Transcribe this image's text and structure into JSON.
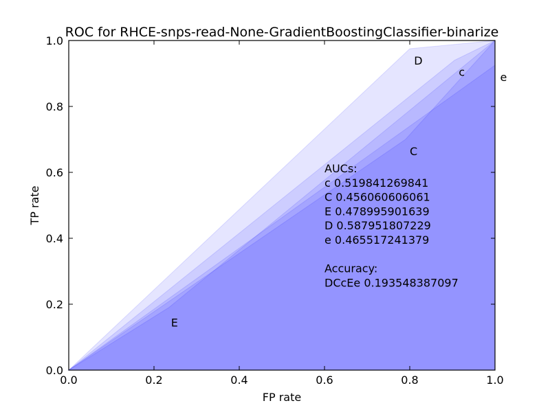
{
  "chart_data": {
    "type": "area",
    "title": "ROC for RHCE-snps-read-None-GradientBoostingClassifier-binarize",
    "xlabel": "FP rate",
    "ylabel": "TP rate",
    "xlim": [
      0.0,
      1.0
    ],
    "ylim": [
      0.0,
      1.0
    ],
    "xticks": [
      "0.0",
      "0.2",
      "0.4",
      "0.6",
      "0.8",
      "1.0"
    ],
    "yticks": [
      "0.0",
      "0.2",
      "0.4",
      "0.6",
      "0.8",
      "1.0"
    ],
    "fill_color": "#0000ff",
    "series": [
      {
        "name": "D",
        "x": [
          0.0,
          0.8,
          1.0
        ],
        "y": [
          0.0,
          0.975,
          1.0
        ],
        "label_at": [
          0.81,
          0.94
        ]
      },
      {
        "name": "c",
        "x": [
          0.0,
          0.905,
          1.0
        ],
        "y": [
          0.0,
          0.94,
          1.0
        ],
        "label_at": [
          0.915,
          0.905
        ]
      },
      {
        "name": "C",
        "x": [
          0.0,
          0.79,
          1.0
        ],
        "y": [
          0.0,
          0.7,
          1.0
        ],
        "label_at": [
          0.8,
          0.665
        ]
      },
      {
        "name": "E",
        "x": [
          0.0,
          0.235,
          1.0
        ],
        "y": [
          0.0,
          0.19,
          1.0
        ],
        "label_at": [
          0.24,
          0.145
        ]
      },
      {
        "name": "e",
        "x": [
          0.0,
          1.0
        ],
        "y": [
          0.0,
          0.925
        ],
        "label_at": [
          1.012,
          0.89
        ]
      }
    ],
    "annotations": [
      "AUCs:",
      "c  0.519841269841",
      "C  0.456060606061",
      "E  0.478995901639",
      "D  0.587951807229",
      "e  0.465517241379",
      "",
      "Accuracy:",
      "DCcEe  0.193548387097"
    ],
    "annotation_at": [
      0.6,
      0.6
    ]
  }
}
